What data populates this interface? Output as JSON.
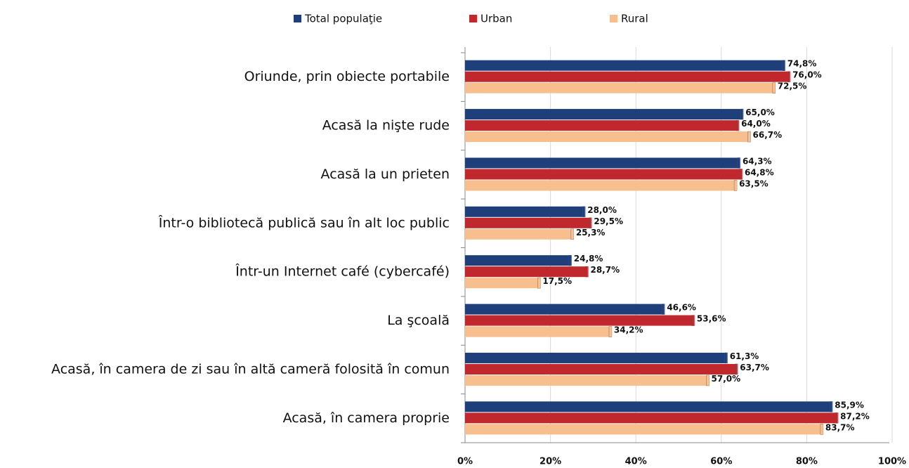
{
  "chart_data": {
    "type": "bar",
    "orientation": "horizontal",
    "categories": [
      "Oriunde, prin obiecte portabile",
      "Acasă la nişte rude",
      "Acasă la un prieten",
      "Într-o bibliotecă publică sau în alt loc public",
      "Într-un Internet café (cybercafé)",
      "La şcoală",
      "Acasă, în camera de zi sau în altă cameră folosită în comun",
      "Acasă, în camera proprie"
    ],
    "series": [
      {
        "name": "Total populaţie",
        "color": "#1f3f7a",
        "values": [
          74.8,
          65.0,
          64.3,
          28.0,
          24.8,
          46.6,
          61.3,
          85.9
        ],
        "value_labels": [
          "74,8%",
          "65,0%",
          "64,3%",
          "28,0%",
          "24,8%",
          "46,6%",
          "61,3%",
          "85,9%"
        ]
      },
      {
        "name": "Urban",
        "color": "#c0282d",
        "values": [
          76.0,
          64.0,
          64.8,
          29.5,
          28.7,
          53.6,
          63.7,
          87.2
        ],
        "value_labels": [
          "76,0%",
          "64,0%",
          "64,8%",
          "29,5%",
          "28,7%",
          "53,6%",
          "63,7%",
          "87,2%"
        ]
      },
      {
        "name": "Rural",
        "color": "#f8bf8e",
        "values": [
          72.5,
          66.7,
          63.5,
          25.3,
          17.5,
          34.2,
          57.0,
          83.7
        ],
        "value_labels": [
          "72,5%",
          "66,7%",
          "63,5%",
          "25,3%",
          "17,5%",
          "34,2%",
          "57,0%",
          "83,7%"
        ]
      }
    ],
    "xlim": [
      0,
      100
    ],
    "xticks": [
      {
        "value": 0,
        "label": "0%"
      },
      {
        "value": 20,
        "label": "20%"
      },
      {
        "value": 40,
        "label": "40%"
      },
      {
        "value": 60,
        "label": "60%"
      },
      {
        "value": 80,
        "label": "80%"
      },
      {
        "value": 100,
        "label": "100%"
      }
    ],
    "grid": true,
    "legend": "top"
  }
}
